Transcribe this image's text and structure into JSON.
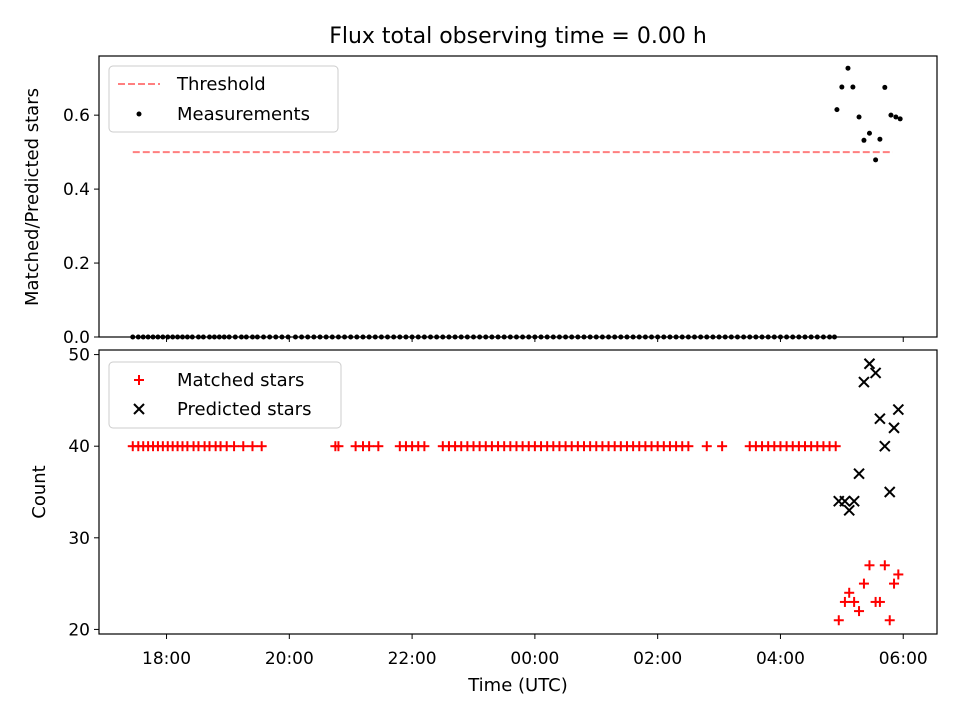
{
  "chart_data": {
    "title": "Flux total observing time = 0.00 h",
    "x_axis": {
      "label": "Time (UTC)",
      "unit": "hours since 00:00 UTC",
      "range": [
        -7.1,
        6.55
      ],
      "ticks": [
        -6,
        -4,
        -2,
        0,
        2,
        4,
        6
      ],
      "tick_labels": [
        "18:00",
        "20:00",
        "22:00",
        "00:00",
        "02:00",
        "04:00",
        "06:00"
      ]
    },
    "panels": [
      {
        "type": "scatter",
        "ylabel": "Matched/Predicted stars",
        "ylim": [
          0,
          0.76
        ],
        "yticks": [
          0.0,
          0.2,
          0.4,
          0.6
        ],
        "ytick_labels": [
          "0.0",
          "0.2",
          "0.4",
          "0.6"
        ],
        "legend_position": "top-left",
        "legend": [
          "Threshold",
          "Measurements"
        ],
        "series": [
          {
            "name": "Threshold",
            "kind": "dashed-line",
            "color": "#ff7f7f",
            "x": [
              -6.55,
              5.83
            ],
            "y": [
              0.5,
              0.5
            ]
          },
          {
            "name": "Measurements",
            "kind": "dot",
            "color": "#000000",
            "x": [
              -6.55,
              -6.46,
              -6.38,
              -6.3,
              -6.22,
              -6.14,
              -6.06,
              -5.98,
              -5.9,
              -5.82,
              -5.74,
              -5.66,
              -5.58,
              -5.48,
              -5.4,
              -5.3,
              -5.22,
              -5.14,
              -5.06,
              -4.98,
              -4.88,
              -4.78,
              -4.7,
              -4.6,
              -4.52,
              -4.42,
              -4.32,
              -4.22,
              -4.12,
              -4.02,
              -3.9,
              -3.8,
              -3.7,
              -3.6,
              -3.5,
              -3.4,
              -3.3,
              -3.2,
              -3.1,
              -3.0,
              -2.9,
              -2.8,
              -2.7,
              -2.6,
              -2.5,
              -2.4,
              -2.3,
              -2.2,
              -2.1,
              -2.0,
              -1.9,
              -1.8,
              -1.7,
              -1.6,
              -1.5,
              -1.4,
              -1.3,
              -1.2,
              -1.1,
              -1.0,
              -0.9,
              -0.8,
              -0.7,
              -0.6,
              -0.5,
              -0.4,
              -0.3,
              -0.2,
              -0.1,
              0.0,
              0.1,
              0.2,
              0.3,
              0.4,
              0.5,
              0.6,
              0.7,
              0.8,
              0.9,
              1.0,
              1.1,
              1.2,
              1.3,
              1.4,
              1.5,
              1.6,
              1.7,
              1.8,
              1.9,
              2.0,
              2.1,
              2.2,
              2.3,
              2.4,
              2.5,
              2.6,
              2.7,
              2.8,
              2.9,
              3.0,
              3.1,
              3.2,
              3.3,
              3.4,
              3.5,
              3.6,
              3.7,
              3.8,
              3.9,
              4.0,
              4.1,
              4.2,
              4.3,
              4.4,
              4.5,
              4.6,
              4.7,
              4.8,
              4.88,
              4.92,
              5.0,
              5.1,
              5.18,
              5.28,
              5.36,
              5.45,
              5.55,
              5.62,
              5.7,
              5.8,
              5.88,
              5.95
            ],
            "y": [
              0,
              0,
              0,
              0,
              0,
              0,
              0,
              0,
              0,
              0,
              0,
              0,
              0,
              0,
              0,
              0,
              0,
              0,
              0,
              0,
              0,
              0,
              0,
              0,
              0,
              0,
              0,
              0,
              0,
              0,
              0,
              0,
              0,
              0,
              0,
              0,
              0,
              0,
              0,
              0,
              0,
              0,
              0,
              0,
              0,
              0,
              0,
              0,
              0,
              0,
              0,
              0,
              0,
              0,
              0,
              0,
              0,
              0,
              0,
              0,
              0,
              0,
              0,
              0,
              0,
              0,
              0,
              0,
              0,
              0,
              0,
              0,
              0,
              0,
              0,
              0,
              0,
              0,
              0,
              0,
              0,
              0,
              0,
              0,
              0,
              0,
              0,
              0,
              0,
              0,
              0,
              0,
              0,
              0,
              0,
              0,
              0,
              0,
              0,
              0,
              0,
              0,
              0,
              0,
              0,
              0,
              0,
              0,
              0,
              0,
              0,
              0,
              0,
              0,
              0,
              0,
              0,
              0,
              0,
              0.615,
              0.676,
              0.727,
              0.676,
              0.595,
              0.532,
              0.551,
              0.479,
              0.535,
              0.675,
              0.6,
              0.595,
              0.59
            ]
          }
        ]
      },
      {
        "type": "scatter",
        "ylabel": "Count",
        "ylim": [
          19.5,
          50.5
        ],
        "yticks": [
          20,
          30,
          40,
          50
        ],
        "ytick_labels": [
          "20",
          "30",
          "40",
          "50"
        ],
        "legend_position": "top-left",
        "legend": [
          "Matched stars",
          "Predicted stars"
        ],
        "series": [
          {
            "name": "Matched stars",
            "kind": "plus",
            "color": "#ff0000",
            "x": [
              -6.55,
              -6.46,
              -6.38,
              -6.3,
              -6.22,
              -6.14,
              -6.06,
              -5.98,
              -5.9,
              -5.82,
              -5.74,
              -5.66,
              -5.56,
              -5.48,
              -5.38,
              -5.3,
              -5.2,
              -5.12,
              -5.02,
              -4.9,
              -4.75,
              -4.6,
              -4.45,
              -3.25,
              -3.2,
              -2.92,
              -2.8,
              -2.7,
              -2.55,
              -2.2,
              -2.1,
              -2.0,
              -1.9,
              -1.8,
              -1.5,
              -1.4,
              -1.3,
              -1.2,
              -1.1,
              -1.0,
              -0.9,
              -0.8,
              -0.7,
              -0.6,
              -0.5,
              -0.4,
              -0.3,
              -0.2,
              -0.1,
              0.0,
              0.1,
              0.2,
              0.3,
              0.4,
              0.5,
              0.6,
              0.7,
              0.8,
              0.9,
              1.0,
              1.1,
              1.2,
              1.3,
              1.4,
              1.5,
              1.6,
              1.7,
              1.8,
              1.9,
              2.0,
              2.1,
              2.2,
              2.3,
              2.4,
              2.5,
              2.8,
              3.05,
              3.5,
              3.6,
              3.7,
              3.8,
              3.9,
              4.0,
              4.1,
              4.2,
              4.3,
              4.4,
              4.5,
              4.6,
              4.7,
              4.8,
              4.9,
              4.95,
              5.05,
              5.12,
              5.2,
              5.28,
              5.36,
              5.45,
              5.55,
              5.62,
              5.7,
              5.78,
              5.85,
              5.92
            ],
            "y": [
              40,
              40,
              40,
              40,
              40,
              40,
              40,
              40,
              40,
              40,
              40,
              40,
              40,
              40,
              40,
              40,
              40,
              40,
              40,
              40,
              40,
              40,
              40,
              40,
              40,
              40,
              40,
              40,
              40,
              40,
              40,
              40,
              40,
              40,
              40,
              40,
              40,
              40,
              40,
              40,
              40,
              40,
              40,
              40,
              40,
              40,
              40,
              40,
              40,
              40,
              40,
              40,
              40,
              40,
              40,
              40,
              40,
              40,
              40,
              40,
              40,
              40,
              40,
              40,
              40,
              40,
              40,
              40,
              40,
              40,
              40,
              40,
              40,
              40,
              40,
              40,
              40,
              40,
              40,
              40,
              40,
              40,
              40,
              40,
              40,
              40,
              40,
              40,
              40,
              40,
              40,
              40,
              21,
              23,
              24,
              23,
              22,
              25,
              27,
              23,
              23,
              27,
              21,
              25,
              26
            ]
          },
          {
            "name": "Predicted stars",
            "kind": "x",
            "color": "#000000",
            "x": [
              4.95,
              5.05,
              5.12,
              5.2,
              5.28,
              5.36,
              5.45,
              5.55,
              5.62,
              5.7,
              5.78,
              5.85,
              5.92
            ],
            "y": [
              34,
              34,
              33,
              34,
              37,
              47,
              49,
              48,
              43,
              40,
              35,
              42,
              44
            ]
          }
        ]
      }
    ]
  }
}
